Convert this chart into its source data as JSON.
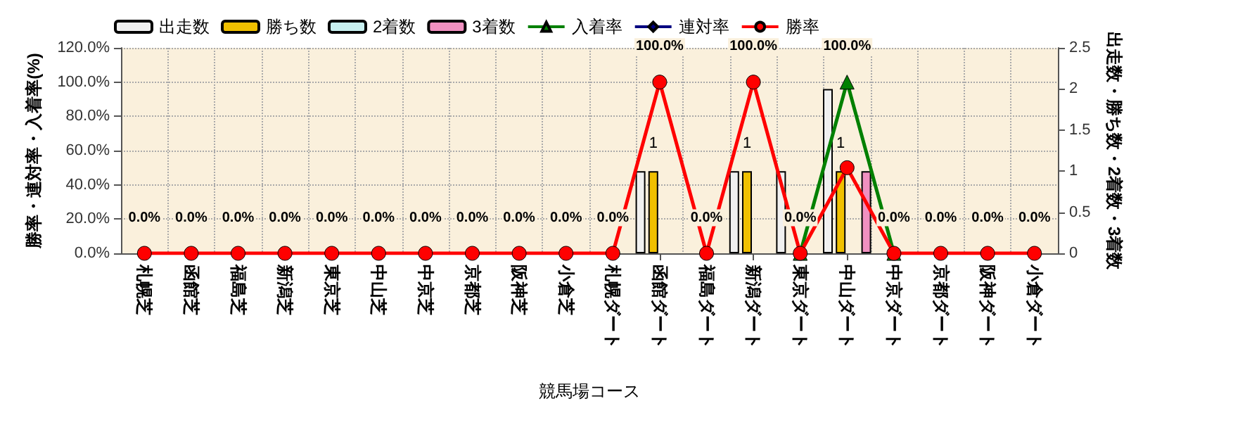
{
  "chart_data": {
    "type": "bar",
    "xlabel": "競馬場コース",
    "ylabel": "勝率・連対率・入着率(%)",
    "y2label": "出走数・勝ち数・2着数・3着数",
    "categories": [
      "札幌芝",
      "函館芝",
      "福島芝",
      "新潟芝",
      "東京芝",
      "中山芝",
      "中京芝",
      "京都芝",
      "阪神芝",
      "小倉芝",
      "札幌ダート",
      "函館ダート",
      "福島ダート",
      "新潟ダート",
      "東京ダート",
      "中山ダート",
      "中京ダート",
      "京都ダート",
      "阪神ダート",
      "小倉ダート"
    ],
    "series": [
      {
        "name": "出走数",
        "axis": "y2",
        "color": "#f0f0f0",
        "values": [
          null,
          null,
          null,
          null,
          null,
          null,
          null,
          null,
          null,
          null,
          null,
          1,
          null,
          1,
          1,
          2,
          null,
          null,
          null,
          null
        ]
      },
      {
        "name": "勝ち数",
        "axis": "y2",
        "color": "#f0c000",
        "values": [
          null,
          null,
          null,
          null,
          null,
          null,
          null,
          null,
          null,
          null,
          null,
          1,
          null,
          1,
          null,
          1,
          null,
          null,
          null,
          null
        ],
        "value_labels": [
          null,
          null,
          null,
          null,
          null,
          null,
          null,
          null,
          null,
          null,
          null,
          "1",
          null,
          "1",
          null,
          "1",
          null,
          null,
          null,
          null
        ]
      },
      {
        "name": "2着数",
        "axis": "y2",
        "color": "#c8f0f0",
        "values": [
          null,
          null,
          null,
          null,
          null,
          null,
          null,
          null,
          null,
          null,
          null,
          null,
          null,
          null,
          null,
          null,
          null,
          null,
          null,
          null
        ]
      },
      {
        "name": "3着数",
        "axis": "y2",
        "color": "#f090c0",
        "values": [
          null,
          null,
          null,
          null,
          null,
          null,
          null,
          null,
          null,
          null,
          null,
          null,
          null,
          null,
          null,
          1,
          null,
          null,
          null,
          null
        ]
      },
      {
        "name": "入着率",
        "type": "line",
        "marker": "triangle",
        "color": "#008000",
        "values": [
          null,
          null,
          null,
          null,
          null,
          null,
          null,
          null,
          null,
          null,
          null,
          null,
          null,
          null,
          0,
          100,
          0,
          null,
          null,
          null
        ],
        "value_labels": [
          null,
          null,
          null,
          null,
          null,
          null,
          null,
          null,
          null,
          null,
          null,
          null,
          null,
          null,
          null,
          "100.0%",
          null,
          null,
          null,
          null
        ]
      },
      {
        "name": "連対率",
        "type": "line",
        "marker": "diamond",
        "color": "#000080",
        "values": [
          null,
          null,
          null,
          null,
          null,
          null,
          null,
          null,
          null,
          null,
          null,
          null,
          null,
          null,
          null,
          null,
          null,
          null,
          null,
          null
        ]
      },
      {
        "name": "勝率",
        "type": "line",
        "marker": "circle",
        "color": "#ff0000",
        "values": [
          0,
          0,
          0,
          0,
          0,
          0,
          0,
          0,
          0,
          0,
          0,
          100,
          0,
          100,
          0,
          50,
          0,
          0,
          0,
          0
        ],
        "value_labels": [
          "0.0%",
          "0.0%",
          "0.0%",
          "0.0%",
          "0.0%",
          "0.0%",
          "0.0%",
          "0.0%",
          "0.0%",
          "0.0%",
          "0.0%",
          "100.0%",
          "0.0%",
          "100.0%",
          "0.0%",
          null,
          "0.0%",
          "0.0%",
          "0.0%",
          "0.0%"
        ]
      }
    ],
    "ylim": [
      0,
      120
    ],
    "yticks": [
      {
        "value": 0,
        "label": "0.0%"
      },
      {
        "value": 20,
        "label": "20.0%"
      },
      {
        "value": 40,
        "label": "40.0%"
      },
      {
        "value": 60,
        "label": "60.0%"
      },
      {
        "value": 80,
        "label": "80.0%"
      },
      {
        "value": 100,
        "label": "100.0%"
      },
      {
        "value": 120,
        "label": "120.0%"
      }
    ],
    "y2lim": [
      0,
      2.5
    ],
    "y2ticks": [
      0,
      0.5,
      1,
      1.5,
      2,
      2.5
    ],
    "grid": true,
    "legend": "top left"
  }
}
